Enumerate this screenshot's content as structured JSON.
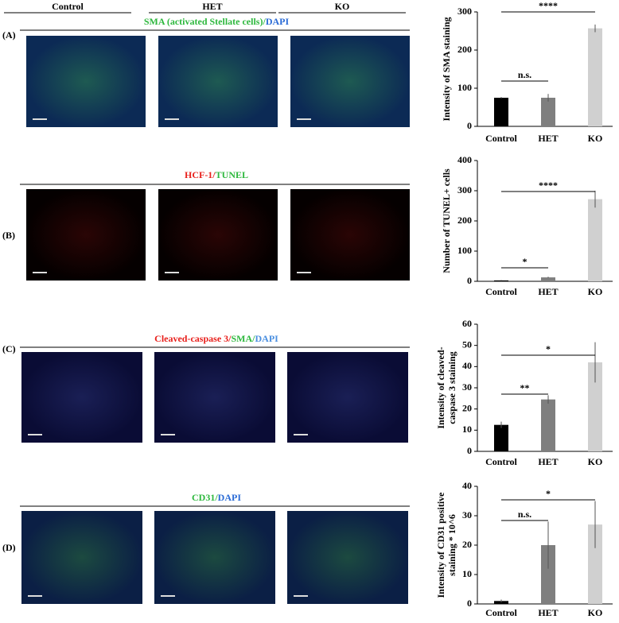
{
  "column_headers": [
    "Control",
    "HET",
    "KO"
  ],
  "panels": [
    {
      "label": "(A)",
      "title": [
        {
          "text": "SMA (activated Stellate cells)/",
          "color": "#2db83d"
        },
        {
          "text": "DAPI",
          "color": "#2a6bd6"
        }
      ]
    },
    {
      "label": "(B)",
      "title": [
        {
          "text": "HCF-1/",
          "color": "#e8201c"
        },
        {
          "text": "TUNEL",
          "color": "#2db83d"
        }
      ]
    },
    {
      "label": "(C)",
      "title": [
        {
          "text": "Cleaved-caspase 3/",
          "color": "#e8201c"
        },
        {
          "text": "SMA/",
          "color": "#2db83d"
        },
        {
          "text": "DAPI",
          "color": "#4a8fe0"
        }
      ]
    },
    {
      "label": "(D)",
      "title": [
        {
          "text": "CD31/",
          "color": "#2db83d"
        },
        {
          "text": "DAPI",
          "color": "#2a6bd6"
        }
      ]
    }
  ],
  "chart_data": [
    {
      "type": "bar",
      "ylabel": [
        "Intensity of SMA staining"
      ],
      "categories": [
        "Control",
        "HET",
        "KO"
      ],
      "values": [
        75,
        75,
        257
      ],
      "errors": [
        2,
        10,
        10
      ],
      "colors": [
        "#000000",
        "#7f7f7f",
        "#d0d0d0"
      ],
      "ylim": [
        0,
        300
      ],
      "yticks": [
        0,
        100,
        200,
        300
      ],
      "annotations": [
        "n.s.",
        "****"
      ]
    },
    {
      "type": "bar",
      "ylabel": [
        "Number of TUNEL+ cells"
      ],
      "categories": [
        "Control",
        "HET",
        "KO"
      ],
      "values": [
        3,
        13,
        272
      ],
      "errors": [
        1,
        2,
        28
      ],
      "colors": [
        "#000000",
        "#7f7f7f",
        "#d0d0d0"
      ],
      "ylim": [
        0,
        400
      ],
      "yticks": [
        0,
        100,
        200,
        300,
        400
      ],
      "annotations": [
        "*",
        "****"
      ]
    },
    {
      "type": "bar",
      "ylabel": [
        "Intensity of cleaved-",
        "caspase 3 staining"
      ],
      "categories": [
        "Control",
        "HET",
        "KO"
      ],
      "values": [
        12.5,
        24.5,
        42
      ],
      "errors": [
        1.5,
        2,
        9.5
      ],
      "colors": [
        "#000000",
        "#7f7f7f",
        "#d0d0d0"
      ],
      "ylim": [
        0,
        60
      ],
      "yticks": [
        0,
        10,
        20,
        30,
        40,
        50,
        60
      ],
      "annotations": [
        "**",
        "*"
      ]
    },
    {
      "type": "bar",
      "ylabel": [
        "Intensity of CD31 positive",
        "staining * 10^6"
      ],
      "categories": [
        "Control",
        "HET",
        "KO"
      ],
      "values": [
        1,
        20,
        27
      ],
      "errors": [
        0.5,
        8,
        8
      ],
      "colors": [
        "#000000",
        "#7f7f7f",
        "#d0d0d0"
      ],
      "ylim": [
        0,
        40
      ],
      "yticks": [
        0,
        10,
        20,
        30,
        40
      ],
      "annotations": [
        "n.s.",
        "*"
      ]
    }
  ]
}
